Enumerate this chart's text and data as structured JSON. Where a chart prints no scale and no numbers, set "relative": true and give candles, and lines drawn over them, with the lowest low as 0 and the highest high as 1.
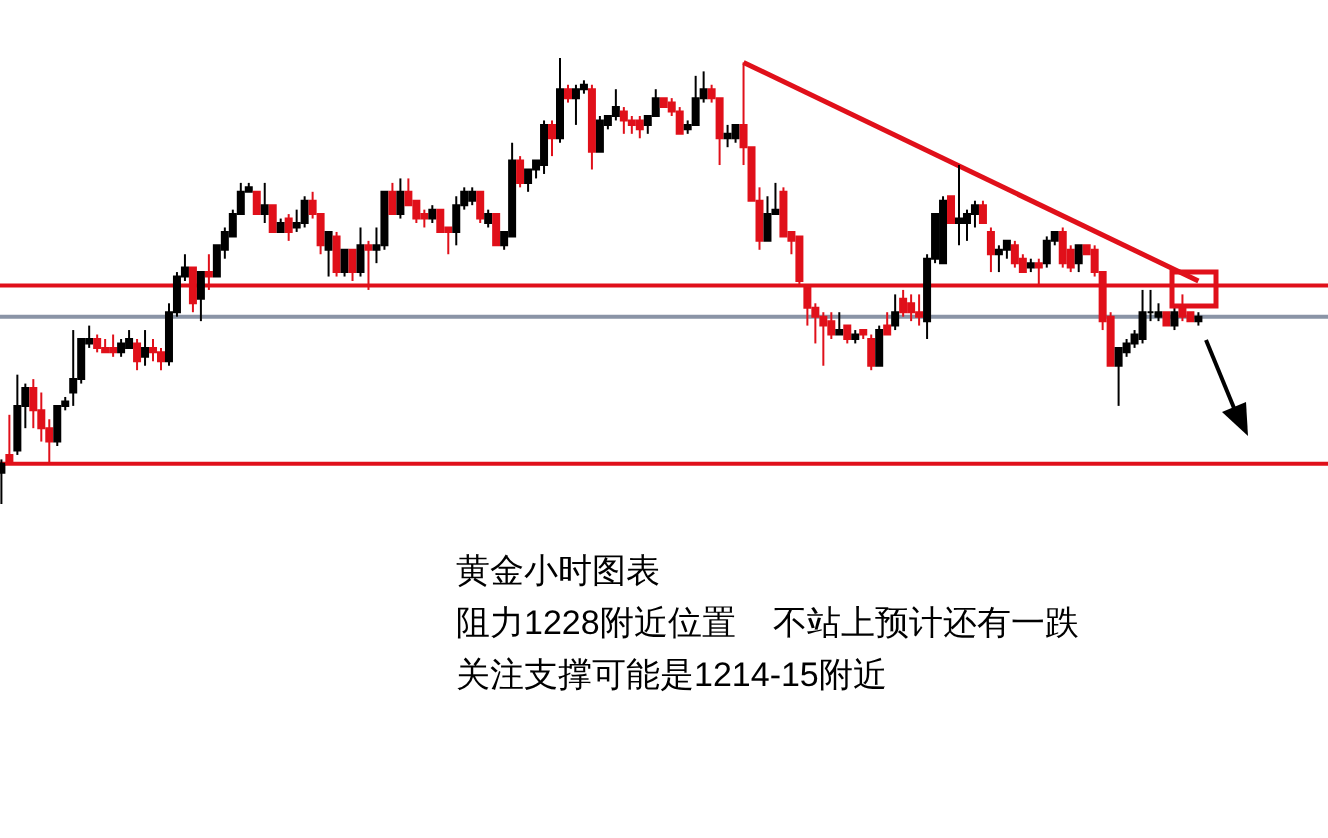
{
  "chart_data": {
    "type": "candlestick",
    "relative": true,
    "categories": [
      null,
      null,
      null,
      null,
      null,
      null,
      null,
      null,
      null,
      null,
      null,
      null,
      null,
      null,
      null,
      null,
      null,
      null,
      null,
      null,
      null,
      null,
      null,
      null,
      null,
      null,
      null,
      null,
      null,
      null,
      null,
      null,
      null,
      null,
      null,
      null,
      null,
      null,
      null,
      null,
      null,
      null,
      null,
      null,
      null,
      null,
      null,
      null,
      null,
      null,
      null,
      null,
      null,
      null,
      null,
      null,
      null,
      null,
      null,
      null,
      null,
      null,
      null,
      null,
      null,
      null,
      null,
      null,
      null,
      null,
      null,
      null,
      null,
      null,
      null,
      null,
      null,
      null,
      null,
      null,
      null,
      null,
      null,
      null,
      null,
      null,
      null,
      null,
      null,
      null,
      null,
      null,
      null,
      null,
      null,
      null,
      null,
      null,
      null,
      null,
      null,
      null,
      null,
      null,
      null,
      null,
      null,
      null,
      null,
      null,
      null,
      null,
      null,
      null,
      null,
      null,
      null,
      null,
      null,
      null,
      null,
      null,
      null,
      null,
      null,
      null,
      null,
      null,
      null,
      null,
      null,
      null,
      null,
      null,
      null,
      null,
      null,
      null,
      null,
      null,
      null,
      null,
      null,
      null,
      null,
      null,
      null,
      null,
      null,
      null,
      null
    ],
    "ohlc": [
      [
        0.07,
        0.1,
        0,
        0.09
      ],
      [
        0.11,
        0.2,
        0.09,
        0.09
      ],
      [
        0.12,
        0.29,
        0.11,
        0.22
      ],
      [
        0.22,
        0.27,
        0.17,
        0.26
      ],
      [
        0.26,
        0.28,
        0.17,
        0.21
      ],
      [
        0.21,
        0.25,
        0.14,
        0.17
      ],
      [
        0.17,
        0.19,
        0.09,
        0.14
      ],
      [
        0.14,
        0.22,
        0.13,
        0.22
      ],
      [
        0.22,
        0.24,
        0.21,
        0.23
      ],
      [
        0.25,
        0.39,
        0.22,
        0.28
      ],
      [
        0.28,
        0.37,
        0.27,
        0.37
      ],
      [
        0.36,
        0.4,
        0.35,
        0.37
      ],
      [
        0.37,
        0.38,
        0.34,
        0.35
      ],
      [
        0.35,
        0.37,
        0.34,
        0.34
      ],
      [
        0.35,
        0.38,
        0.33,
        0.34
      ],
      [
        0.34,
        0.37,
        0.33,
        0.36
      ],
      [
        0.35,
        0.39,
        0.35,
        0.37
      ],
      [
        0.36,
        0.37,
        0.3,
        0.32
      ],
      [
        0.33,
        0.39,
        0.31,
        0.35
      ],
      [
        0.35,
        0.37,
        0.32,
        0.34
      ],
      [
        0.34,
        0.35,
        0.3,
        0.32
      ],
      [
        0.32,
        0.45,
        0.31,
        0.43
      ],
      [
        0.43,
        0.52,
        0.42,
        0.51
      ],
      [
        0.51,
        0.56,
        0.5,
        0.53
      ],
      [
        0.53,
        0.53,
        0.43,
        0.45
      ],
      [
        0.46,
        0.52,
        0.41,
        0.52
      ],
      [
        0.52,
        0.56,
        0.48,
        0.51
      ],
      [
        0.51,
        0.58,
        0.51,
        0.58
      ],
      [
        0.57,
        0.62,
        0.55,
        0.61
      ],
      [
        0.6,
        0.66,
        0.6,
        0.65
      ],
      [
        0.65,
        0.72,
        0.65,
        0.7
      ],
      [
        0.7,
        0.72,
        0.7,
        0.71
      ],
      [
        0.7,
        0.7,
        0.65,
        0.65
      ],
      [
        0.65,
        0.72,
        0.63,
        0.67
      ],
      [
        0.67,
        0.67,
        0.61,
        0.61
      ],
      [
        0.61,
        0.64,
        0.61,
        0.63
      ],
      [
        0.64,
        0.65,
        0.59,
        0.61
      ],
      [
        0.62,
        0.66,
        0.61,
        0.63
      ],
      [
        0.63,
        0.69,
        0.62,
        0.68
      ],
      [
        0.68,
        0.7,
        0.64,
        0.65
      ],
      [
        0.65,
        0.65,
        0.56,
        0.58
      ],
      [
        0.57,
        0.61,
        0.51,
        0.61
      ],
      [
        0.6,
        0.61,
        0.51,
        0.52
      ],
      [
        0.52,
        0.57,
        0.51,
        0.57
      ],
      [
        0.57,
        0.57,
        0.5,
        0.52
      ],
      [
        0.52,
        0.62,
        0.51,
        0.58
      ],
      [
        0.58,
        0.59,
        0.48,
        0.57
      ],
      [
        0.57,
        0.62,
        0.54,
        0.58
      ],
      [
        0.58,
        0.7,
        0.57,
        0.7
      ],
      [
        0.7,
        0.72,
        0.65,
        0.65
      ],
      [
        0.65,
        0.73,
        0.64,
        0.7
      ],
      [
        0.7,
        0.73,
        0.67,
        0.67
      ],
      [
        0.68,
        0.68,
        0.63,
        0.64
      ],
      [
        0.65,
        0.66,
        0.62,
        0.64
      ],
      [
        0.64,
        0.67,
        0.63,
        0.66
      ],
      [
        0.66,
        0.66,
        0.61,
        0.61
      ],
      [
        0.62,
        0.62,
        0.56,
        0.61
      ],
      [
        0.61,
        0.69,
        0.58,
        0.67
      ],
      [
        0.67,
        0.71,
        0.66,
        0.7
      ],
      [
        0.68,
        0.71,
        0.67,
        0.7
      ],
      [
        0.7,
        0.7,
        0.63,
        0.64
      ],
      [
        0.63,
        0.66,
        0.62,
        0.65
      ],
      [
        0.65,
        0.65,
        0.58,
        0.58
      ],
      [
        0.58,
        0.61,
        0.57,
        0.61
      ],
      [
        0.6,
        0.81,
        0.6,
        0.77
      ],
      [
        0.77,
        0.78,
        0.71,
        0.72
      ],
      [
        0.72,
        0.75,
        0.7,
        0.75
      ],
      [
        0.75,
        0.77,
        0.73,
        0.77
      ],
      [
        0.76,
        0.86,
        0.74,
        0.85
      ],
      [
        0.85,
        0.86,
        0.78,
        0.82
      ],
      [
        0.82,
        1,
        0.81,
        0.93
      ],
      [
        0.93,
        0.94,
        0.9,
        0.91
      ],
      [
        0.91,
        0.94,
        0.85,
        0.93
      ],
      [
        0.93,
        0.95,
        0.92,
        0.94
      ],
      [
        0.93,
        0.94,
        0.75,
        0.79
      ],
      [
        0.79,
        0.87,
        0.79,
        0.86
      ],
      [
        0.85,
        0.87,
        0.84,
        0.87
      ],
      [
        0.87,
        0.93,
        0.86,
        0.89
      ],
      [
        0.88,
        0.89,
        0.83,
        0.86
      ],
      [
        0.86,
        0.87,
        0.83,
        0.85
      ],
      [
        0.86,
        0.87,
        0.82,
        0.84
      ],
      [
        0.85,
        0.87,
        0.83,
        0.87
      ],
      [
        0.87,
        0.93,
        0.87,
        0.91
      ],
      [
        0.91,
        0.91,
        0.89,
        0.89
      ],
      [
        0.9,
        0.91,
        0.87,
        0.88
      ],
      [
        0.88,
        0.89,
        0.83,
        0.83
      ],
      [
        0.84,
        0.86,
        0.83,
        0.85
      ],
      [
        0.85,
        0.96,
        0.85,
        0.91
      ],
      [
        0.91,
        0.97,
        0.9,
        0.93
      ],
      [
        0.93,
        0.94,
        0.9,
        0.91
      ],
      [
        0.91,
        0.91,
        0.76,
        0.82
      ],
      [
        0.82,
        0.85,
        0.8,
        0.83
      ],
      [
        0.82,
        0.85,
        0.81,
        0.85
      ],
      [
        0.85,
        0.99,
        0.76,
        0.8
      ],
      [
        0.8,
        0.8,
        0.68,
        0.68
      ],
      [
        0.68,
        0.71,
        0.57,
        0.59
      ],
      [
        0.59,
        0.69,
        0.59,
        0.65
      ],
      [
        0.65,
        0.72,
        0.65,
        0.66
      ],
      [
        0.7,
        0.71,
        0.6,
        0.6
      ],
      [
        0.61,
        0.61,
        0.56,
        0.59
      ],
      [
        0.6,
        0.6,
        0.49,
        0.5
      ],
      [
        0.49,
        0.49,
        0.4,
        0.44
      ],
      [
        0.44,
        0.45,
        0.36,
        0.42
      ],
      [
        0.42,
        0.43,
        0.31,
        0.4
      ],
      [
        0.41,
        0.43,
        0.37,
        0.38
      ],
      [
        0.38,
        0.43,
        0.38,
        0.39
      ],
      [
        0.4,
        0.4,
        0.36,
        0.37
      ],
      [
        0.37,
        0.39,
        0.36,
        0.38
      ],
      [
        0.39,
        0.39,
        0.37,
        0.38
      ],
      [
        0.37,
        0.38,
        0.3,
        0.31
      ],
      [
        0.31,
        0.4,
        0.31,
        0.39
      ],
      [
        0.4,
        0.43,
        0.38,
        0.38
      ],
      [
        0.4,
        0.47,
        0.39,
        0.43
      ],
      [
        0.46,
        0.48,
        0.42,
        0.43
      ],
      [
        0.45,
        0.47,
        0.41,
        0.43
      ],
      [
        0.43,
        0.47,
        0.4,
        0.42
      ],
      [
        0.41,
        0.56,
        0.37,
        0.55
      ],
      [
        0.55,
        0.65,
        0.54,
        0.65
      ],
      [
        0.54,
        0.69,
        0.54,
        0.68
      ],
      [
        0.69,
        0.69,
        0.63,
        0.63
      ],
      [
        0.63,
        0.76,
        0.58,
        0.64
      ],
      [
        0.63,
        0.66,
        0.59,
        0.65
      ],
      [
        0.65,
        0.68,
        0.62,
        0.67
      ],
      [
        0.67,
        0.68,
        0.63,
        0.63
      ],
      [
        0.61,
        0.62,
        0.52,
        0.56
      ],
      [
        0.56,
        0.58,
        0.52,
        0.57
      ],
      [
        0.57,
        0.59,
        0.55,
        0.59
      ],
      [
        0.58,
        0.59,
        0.53,
        0.54
      ],
      [
        0.55,
        0.56,
        0.52,
        0.52
      ],
      [
        0.53,
        0.55,
        0.52,
        0.54
      ],
      [
        0.54,
        0.55,
        0.49,
        0.53
      ],
      [
        0.54,
        0.6,
        0.53,
        0.59
      ],
      [
        0.59,
        0.61,
        0.58,
        0.61
      ],
      [
        0.61,
        0.62,
        0.53,
        0.54
      ],
      [
        0.57,
        0.58,
        0.52,
        0.53
      ],
      [
        0.54,
        0.58,
        0.52,
        0.58
      ],
      [
        0.58,
        0.58,
        0.56,
        0.56
      ],
      [
        0.57,
        0.58,
        0.51,
        0.52
      ],
      [
        0.52,
        0.52,
        0.39,
        0.41
      ],
      [
        0.42,
        0.43,
        0.31,
        0.31
      ],
      [
        0.31,
        0.35,
        0.22,
        0.35
      ],
      [
        0.34,
        0.37,
        0.33,
        0.36
      ],
      [
        0.36,
        0.39,
        0.35,
        0.38
      ],
      [
        0.37,
        0.48,
        0.36,
        0.43
      ],
      [
        0.43,
        0.48,
        0.41,
        0.43
      ],
      [
        0.42,
        0.45,
        0.41,
        0.43
      ],
      [
        0.43,
        0.43,
        0.4,
        0.4
      ],
      [
        0.4,
        0.44,
        0.39,
        0.43
      ],
      [
        0.44,
        0.47,
        0.41,
        0.42
      ],
      [
        0.43,
        0.43,
        0.41,
        0.41
      ],
      [
        0.41,
        0.43,
        0.4,
        0.42
      ]
    ],
    "colors": [
      "#000000",
      "#e0101a",
      "#000000",
      "#000000",
      "#e0101a",
      "#e0101a",
      "#e0101a",
      "#000000",
      "#000000",
      "#000000",
      "#000000",
      "#000000",
      "#e0101a",
      "#e0101a",
      "#e0101a",
      "#000000",
      "#000000",
      "#e0101a",
      "#000000",
      "#e0101a",
      "#e0101a",
      "#000000",
      "#000000",
      "#000000",
      "#e0101a",
      "#000000",
      "#e0101a",
      "#000000",
      "#000000",
      "#000000",
      "#000000",
      "#000000",
      "#e0101a",
      "#000000",
      "#e0101a",
      "#000000",
      "#e0101a",
      "#000000",
      "#000000",
      "#e0101a",
      "#e0101a",
      "#000000",
      "#e0101a",
      "#000000",
      "#e0101a",
      "#000000",
      "#e0101a",
      "#000000",
      "#000000",
      "#e0101a",
      "#000000",
      "#e0101a",
      "#e0101a",
      "#e0101a",
      "#000000",
      "#e0101a",
      "#e0101a",
      "#000000",
      "#000000",
      "#000000",
      "#e0101a",
      "#000000",
      "#e0101a",
      "#000000",
      "#000000",
      "#e0101a",
      "#000000",
      "#000000",
      "#000000",
      "#e0101a",
      "#000000",
      "#e0101a",
      "#000000",
      "#000000",
      "#e0101a",
      "#000000",
      "#000000",
      "#000000",
      "#e0101a",
      "#e0101a",
      "#e0101a",
      "#000000",
      "#000000",
      "#e0101a",
      "#e0101a",
      "#e0101a",
      "#000000",
      "#000000",
      "#000000",
      "#e0101a",
      "#e0101a",
      "#000000",
      "#000000",
      "#e0101a",
      "#e0101a",
      "#e0101a",
      "#000000",
      "#000000",
      "#e0101a",
      "#e0101a",
      "#e0101a",
      "#e0101a",
      "#e0101a",
      "#e0101a",
      "#e0101a",
      "#000000",
      "#e0101a",
      "#000000",
      "#e0101a",
      "#e0101a",
      "#000000",
      "#e0101a",
      "#000000",
      "#e0101a",
      "#e0101a",
      "#e0101a",
      "#000000",
      "#000000",
      "#000000",
      "#e0101a",
      "#000000",
      "#000000",
      "#000000",
      "#e0101a",
      "#e0101a",
      "#000000",
      "#000000",
      "#e0101a",
      "#e0101a",
      "#000000",
      "#e0101a",
      "#000000",
      "#000000",
      "#e0101a",
      "#e0101a",
      "#000000",
      "#e0101a",
      "#e0101a",
      "#e0101a",
      "#e0101a",
      "#000000",
      "#000000",
      "#000000",
      "#000000",
      "#000000",
      "#000000",
      "#e0101a",
      "#000000",
      "#e0101a",
      "#e0101a",
      "#000000"
    ],
    "series": [
      {
        "type": "line",
        "color": "#e0101a",
        "values": [
          null,
          null,
          null,
          null,
          null,
          null,
          null,
          null,
          null,
          null,
          null,
          null,
          null,
          null,
          null,
          null,
          null,
          null,
          null,
          null,
          null,
          null,
          null,
          null,
          null,
          null,
          null,
          null,
          null,
          null,
          null,
          null,
          null,
          null,
          null,
          null,
          null,
          null,
          null,
          null,
          null,
          null,
          null,
          null,
          null,
          null,
          null,
          null,
          null,
          null,
          null,
          null,
          null,
          null,
          null,
          null,
          null,
          null,
          null,
          null,
          null,
          null,
          null,
          null,
          null,
          null,
          null,
          null,
          null,
          null,
          null,
          null,
          null,
          null,
          null,
          null,
          null,
          null,
          null,
          null,
          null,
          null,
          null,
          null,
          null,
          null,
          null,
          null,
          null,
          null,
          null,
          null,
          null,
          0.99,
          null,
          null,
          null,
          null,
          null,
          null,
          null,
          null,
          null,
          null,
          null,
          null,
          null,
          null,
          null,
          null,
          null,
          null,
          null,
          null,
          null,
          null,
          null,
          null,
          null,
          null,
          null,
          null,
          null,
          null,
          null,
          null,
          null,
          null,
          null,
          null,
          null,
          null,
          null,
          null,
          null,
          null,
          null,
          null,
          null,
          null,
          null,
          null,
          null,
          null,
          null,
          null,
          null,
          null,
          null,
          null,
          0.5
        ]
      }
    ],
    "ref_lines": [
      {
        "axis": "y",
        "value": 0.49,
        "color": "#e0101a"
      },
      {
        "axis": "y",
        "value": 0.42,
        "color": "#8a94a6"
      },
      {
        "axis": "y",
        "value": 0.09,
        "color": "#e0101a"
      }
    ],
    "annotations": [
      "黄金小时图表",
      "阻力1228附近位置    不站上预计还有一跌",
      "关注支撑可能是1214-15附近"
    ]
  }
}
